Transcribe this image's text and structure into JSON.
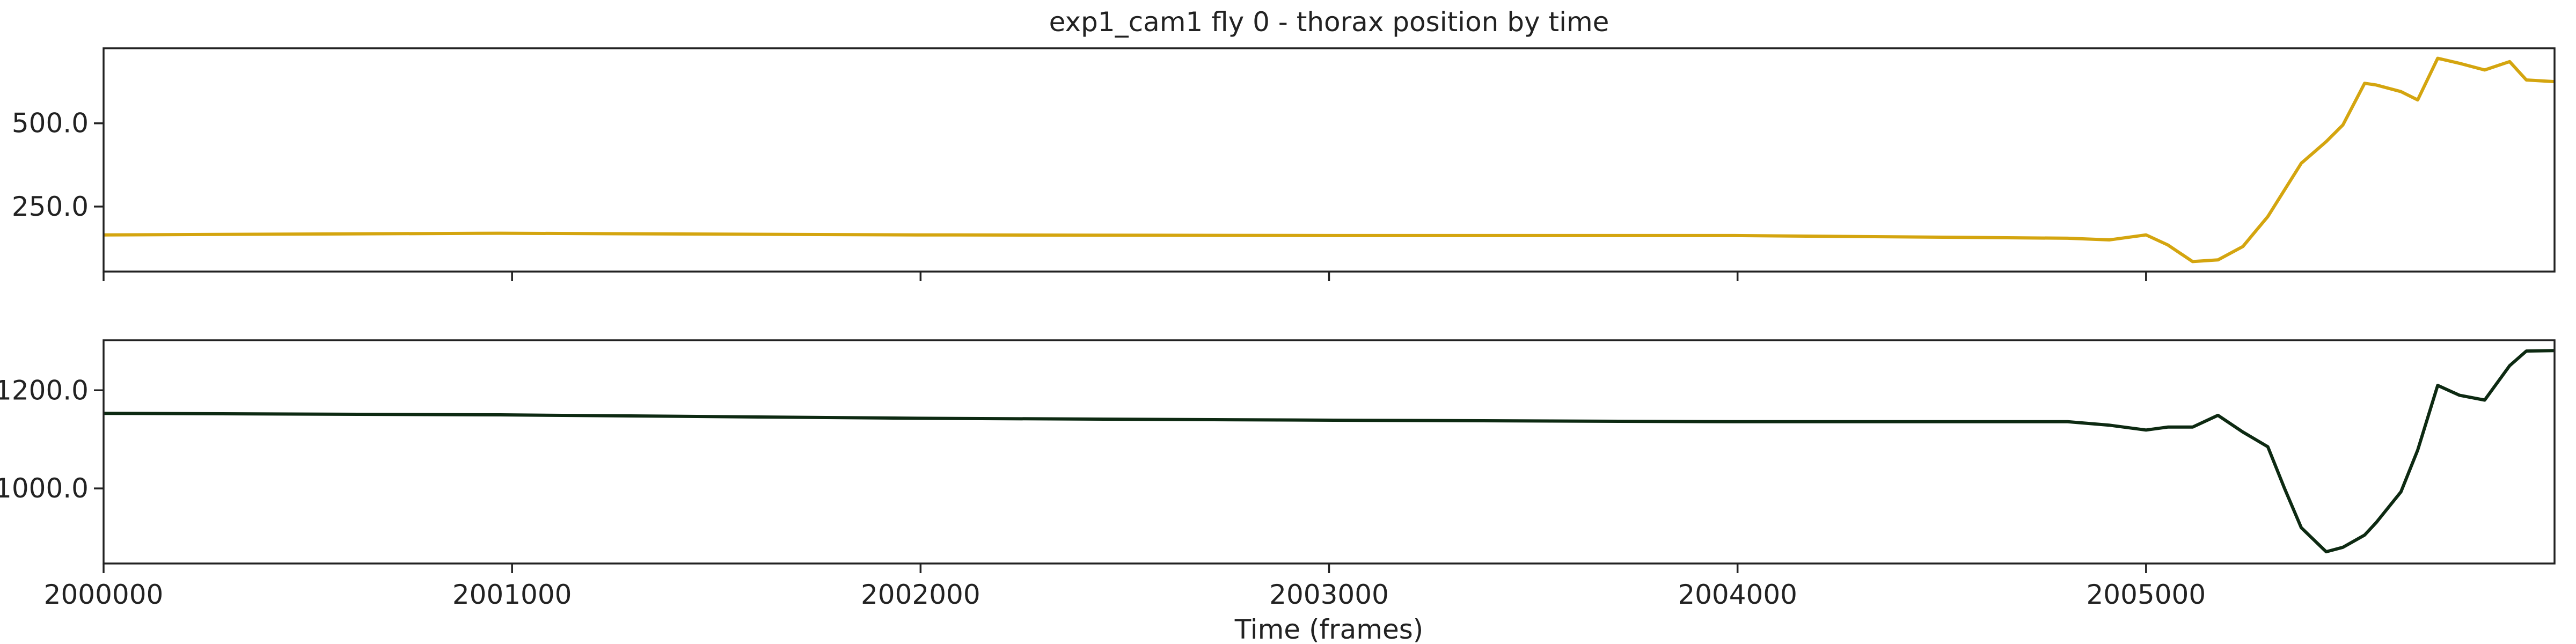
{
  "chart_data": [
    {
      "type": "line",
      "title": "exp1_cam1 fly 0 - thorax position by time",
      "x": [
        2000000,
        2000971,
        2001992,
        2003012,
        2003992,
        2004808,
        2004910,
        2005000,
        2005053,
        2005114,
        2005176,
        2005237,
        2005298,
        2005339,
        2005380,
        2005441,
        2005482,
        2005535,
        2005563,
        2005624,
        2005665,
        2005714,
        2005767,
        2005829,
        2005890,
        2005931,
        2006000
      ],
      "series": [
        {
          "color": "#d4a50f",
          "values": [
            165,
            170,
            165,
            163,
            163,
            155,
            150,
            165,
            135,
            85,
            90,
            130,
            220,
            300,
            380,
            445,
            495,
            620,
            615,
            595,
            570,
            695,
            680,
            660,
            685,
            630,
            625
          ]
        }
      ],
      "xlim": [
        2000000,
        2006000
      ],
      "xticks": [
        2000000,
        2001000,
        2002000,
        2003000,
        2004000,
        2005000
      ],
      "ylim": [
        55,
        725
      ],
      "yticks": [
        {
          "value": 250,
          "label": "250.0"
        },
        {
          "value": 500,
          "label": "500.0"
        }
      ]
    },
    {
      "type": "line",
      "xlabel": "Time (frames)",
      "x": [
        2000000,
        2000971,
        2001992,
        2003012,
        2003992,
        2004808,
        2004910,
        2005000,
        2005053,
        2005114,
        2005176,
        2005237,
        2005298,
        2005339,
        2005380,
        2005441,
        2005482,
        2005535,
        2005563,
        2005624,
        2005665,
        2005714,
        2005767,
        2005829,
        2005890,
        2005931,
        2006000
      ],
      "series": [
        {
          "color": "#0d2a12",
          "values": [
            1153,
            1150,
            1143,
            1139,
            1136,
            1136,
            1129,
            1119,
            1125,
            1125,
            1149,
            1115,
            1085,
            1000,
            920,
            871,
            880,
            905,
            930,
            993,
            1078,
            1210,
            1190,
            1180,
            1250,
            1280,
            1281
          ]
        }
      ],
      "xlim": [
        2000000,
        2006000
      ],
      "xticks": [
        2000000,
        2001000,
        2002000,
        2003000,
        2004000,
        2005000
      ],
      "ylim": [
        847,
        1302
      ],
      "yticks": [
        {
          "value": 1000,
          "label": "1000.0"
        },
        {
          "value": 1200,
          "label": "1200.0"
        }
      ]
    }
  ]
}
